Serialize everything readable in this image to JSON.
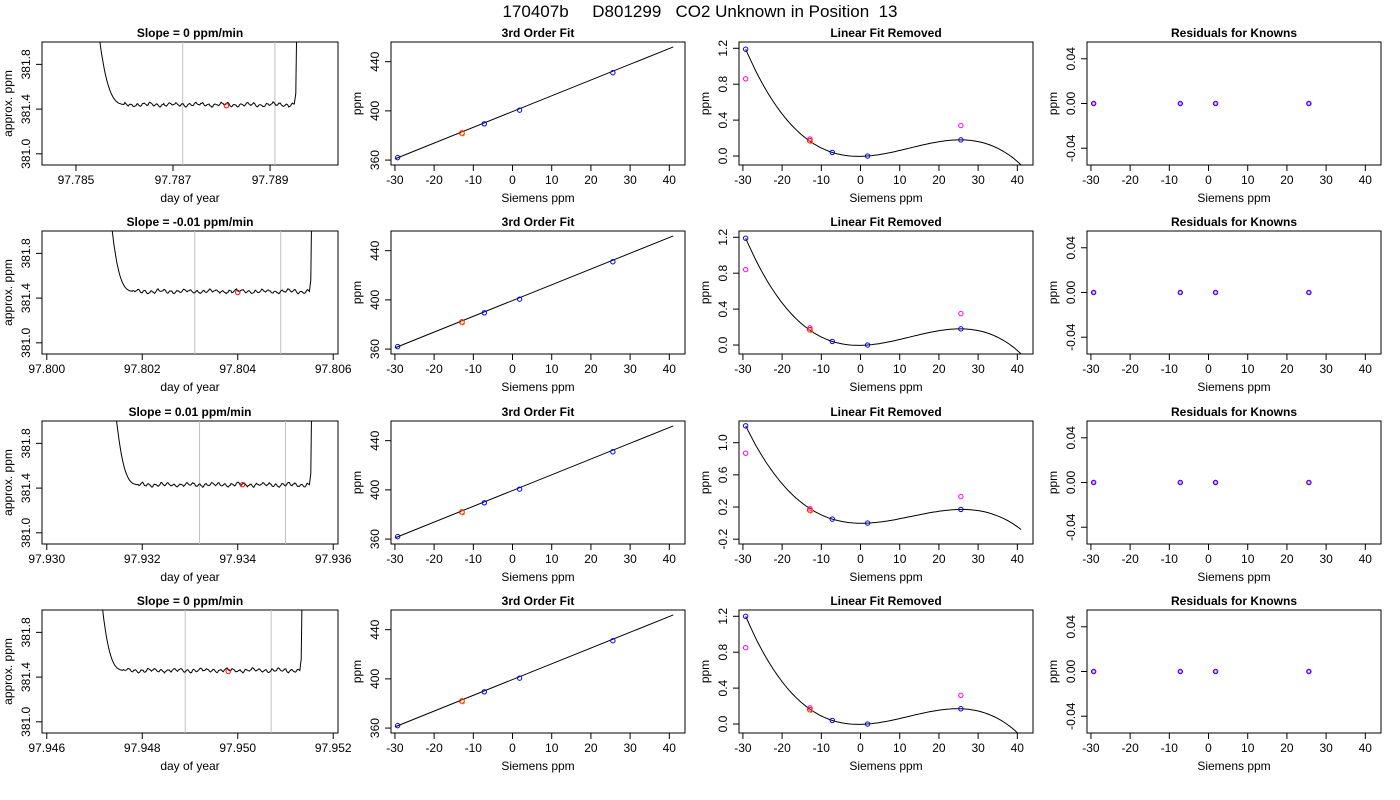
{
  "page_title": "170407b     D801299   CO2 Unknown in Position  13",
  "colors": {
    "trace": "#000000",
    "window_line": "#c0c0c0",
    "unknown_point": "#ff0000",
    "known_point": "#0000ff",
    "original_point": "#ff00ff",
    "fit_line": "#000000"
  },
  "chart_data": [
    {
      "type": "line",
      "row": 0,
      "title": "Slope =  0  ppm/min",
      "xlabel": "day of year",
      "ylabel": "approx. ppm",
      "xlim": [
        97.7843,
        97.7904
      ],
      "ylim": [
        380.9,
        382.0
      ],
      "xticks": [
        97.785,
        97.787,
        97.789
      ],
      "xticklabels": [
        "97.785",
        "97.787",
        "97.789"
      ],
      "yticks": [
        381.0,
        381.4,
        381.8
      ],
      "yticklabels": [
        "381.0",
        "381.4",
        "381.8"
      ],
      "window": [
        97.7872,
        97.7891
      ],
      "marker": {
        "x": 97.7881,
        "y": 381.43
      },
      "trace": {
        "x_start": 97.7853,
        "x_plateau": 97.786,
        "x_end": 97.7895,
        "level": 381.44
      }
    },
    {
      "type": "line",
      "row": 0,
      "title": "3rd Order Fit",
      "xlabel": "Siemens ppm",
      "ylabel": "ppm",
      "xlim": [
        -31,
        44
      ],
      "ylim": [
        356,
        456
      ],
      "xticks": [
        -30,
        -20,
        -10,
        0,
        10,
        20,
        30,
        40
      ],
      "xticklabels": [
        "-30",
        "-20",
        "-10",
        "0",
        "10",
        "20",
        "30",
        "40"
      ],
      "yticks": [
        360,
        400,
        440
      ],
      "yticklabels": [
        "360",
        "400",
        "440"
      ],
      "line": {
        "x": [
          -30,
          41
        ],
        "y": [
          361,
          452
        ]
      },
      "knowns": [
        {
          "x": -29.3,
          "y": 362
        },
        {
          "x": -7.2,
          "y": 389.5
        },
        {
          "x": 1.8,
          "y": 400.6
        },
        {
          "x": 25.6,
          "y": 431
        }
      ],
      "unknown": {
        "x": -12.9,
        "y": 382
      }
    },
    {
      "type": "line",
      "row": 0,
      "title": "Linear Fit Removed",
      "xlabel": "Siemens ppm",
      "ylabel": "ppm",
      "xlim": [
        -31,
        44
      ],
      "ylim": [
        -0.1,
        1.27
      ],
      "xticks": [
        -30,
        -20,
        -10,
        0,
        10,
        20,
        30,
        40
      ],
      "xticklabels": [
        "-30",
        "-20",
        "-10",
        "0",
        "10",
        "20",
        "30",
        "40"
      ],
      "yticks": [
        0,
        0.4,
        0.8,
        1.2
      ],
      "yticklabels": [
        "0.0",
        "0.4",
        "0.8",
        "1.2"
      ],
      "curve": {
        "x_range": [
          -29.3,
          41
        ],
        "points": [
          [
            -29.3,
            1.19
          ],
          [
            -7.2,
            0.04
          ],
          [
            1.8,
            0.0
          ],
          [
            25.6,
            0.18
          ]
        ]
      },
      "knowns": [
        {
          "x": -29.3,
          "y": 1.19
        },
        {
          "x": -7.2,
          "y": 0.04
        },
        {
          "x": 1.8,
          "y": 0.0
        },
        {
          "x": 25.6,
          "y": 0.18
        }
      ],
      "unknown": {
        "x": -12.9,
        "y": 0.17
      },
      "originals": [
        {
          "x": -29.3,
          "y": 0.86
        },
        {
          "x": -12.9,
          "y": 0.19
        },
        {
          "x": 25.6,
          "y": 0.34
        }
      ]
    },
    {
      "type": "scatter",
      "row": 0,
      "title": "Residuals for Knowns",
      "xlabel": "Siemens ppm",
      "ylabel": "ppm",
      "xlim": [
        -31,
        44
      ],
      "ylim": [
        -0.055,
        0.055
      ],
      "xticks": [
        -30,
        -20,
        -10,
        0,
        10,
        20,
        30,
        40
      ],
      "xticklabels": [
        "-30",
        "-20",
        "-10",
        "0",
        "10",
        "20",
        "30",
        "40"
      ],
      "yticks": [
        -0.04,
        0,
        0.04
      ],
      "yticklabels": [
        "-0.04",
        "0.00",
        "0.04"
      ],
      "points": [
        {
          "x": -29.3,
          "y": 0
        },
        {
          "x": -7.2,
          "y": 0
        },
        {
          "x": 1.8,
          "y": 0
        },
        {
          "x": 25.6,
          "y": 0
        }
      ]
    },
    {
      "type": "line",
      "row": 1,
      "title": "Slope =  -0.01  ppm/min",
      "xlabel": "day of year",
      "ylabel": "approx. ppm",
      "xlim": [
        97.7999,
        97.8061
      ],
      "ylim": [
        380.9,
        382.0
      ],
      "xticks": [
        97.8,
        97.802,
        97.804,
        97.806
      ],
      "xticklabels": [
        "97.800",
        "97.802",
        "97.804",
        "97.806"
      ],
      "yticks": [
        381.0,
        381.4,
        381.8
      ],
      "yticklabels": [
        "381.0",
        "381.4",
        "381.8"
      ],
      "window": [
        97.8031,
        97.8049
      ],
      "marker": {
        "x": 97.804,
        "y": 381.45
      },
      "trace": {
        "x_start": 97.8012,
        "x_plateau": 97.8018,
        "x_end": 97.8055,
        "level": 381.46
      }
    },
    {
      "type": "line",
      "row": 1,
      "title": "3rd Order Fit",
      "xlabel": "Siemens ppm",
      "ylabel": "ppm",
      "xlim": [
        -31,
        44
      ],
      "ylim": [
        356,
        456
      ],
      "xticks": [
        -30,
        -20,
        -10,
        0,
        10,
        20,
        30,
        40
      ],
      "xticklabels": [
        "-30",
        "-20",
        "-10",
        "0",
        "10",
        "20",
        "30",
        "40"
      ],
      "yticks": [
        360,
        400,
        440
      ],
      "yticklabels": [
        "360",
        "400",
        "440"
      ],
      "line": {
        "x": [
          -30,
          41
        ],
        "y": [
          361,
          452
        ]
      },
      "knowns": [
        {
          "x": -29.3,
          "y": 362
        },
        {
          "x": -7.2,
          "y": 389.5
        },
        {
          "x": 1.8,
          "y": 400.6
        },
        {
          "x": 25.6,
          "y": 431
        }
      ],
      "unknown": {
        "x": -12.9,
        "y": 382
      }
    },
    {
      "type": "line",
      "row": 1,
      "title": "Linear Fit Removed",
      "xlabel": "Siemens ppm",
      "ylabel": "ppm",
      "xlim": [
        -31,
        44
      ],
      "ylim": [
        -0.1,
        1.27
      ],
      "xticks": [
        -30,
        -20,
        -10,
        0,
        10,
        20,
        30,
        40
      ],
      "xticklabels": [
        "-30",
        "-20",
        "-10",
        "0",
        "10",
        "20",
        "30",
        "40"
      ],
      "yticks": [
        0,
        0.4,
        0.8,
        1.2
      ],
      "yticklabels": [
        "0.0",
        "0.4",
        "0.8",
        "1.2"
      ],
      "curve": {
        "x_range": [
          -29.3,
          41
        ],
        "points": [
          [
            -29.3,
            1.19
          ],
          [
            -7.2,
            0.04
          ],
          [
            1.8,
            0.0
          ],
          [
            25.6,
            0.18
          ]
        ]
      },
      "knowns": [
        {
          "x": -29.3,
          "y": 1.19
        },
        {
          "x": -7.2,
          "y": 0.04
        },
        {
          "x": 1.8,
          "y": 0.0
        },
        {
          "x": 25.6,
          "y": 0.18
        }
      ],
      "unknown": {
        "x": -12.9,
        "y": 0.17
      },
      "originals": [
        {
          "x": -29.3,
          "y": 0.84
        },
        {
          "x": -12.9,
          "y": 0.19
        },
        {
          "x": 25.6,
          "y": 0.35
        }
      ]
    },
    {
      "type": "scatter",
      "row": 1,
      "title": "Residuals for Knowns",
      "xlabel": "Siemens ppm",
      "ylabel": "ppm",
      "xlim": [
        -31,
        44
      ],
      "ylim": [
        -0.055,
        0.055
      ],
      "xticks": [
        -30,
        -20,
        -10,
        0,
        10,
        20,
        30,
        40
      ],
      "xticklabels": [
        "-30",
        "-20",
        "-10",
        "0",
        "10",
        "20",
        "30",
        "40"
      ],
      "yticks": [
        -0.04,
        0,
        0.04
      ],
      "yticklabels": [
        "-0.04",
        "0.00",
        "0.04"
      ],
      "points": [
        {
          "x": -29.3,
          "y": 0
        },
        {
          "x": -7.2,
          "y": 0
        },
        {
          "x": 1.8,
          "y": 0
        },
        {
          "x": 25.6,
          "y": 0
        }
      ]
    },
    {
      "type": "line",
      "row": 2,
      "title": "Slope =  0.01  ppm/min",
      "xlabel": "day of year",
      "ylabel": "approx. ppm",
      "xlim": [
        97.9299,
        97.9361
      ],
      "ylim": [
        380.9,
        382.0
      ],
      "xticks": [
        97.93,
        97.932,
        97.934,
        97.936
      ],
      "xticklabels": [
        "97.930",
        "97.932",
        "97.934",
        "97.936"
      ],
      "yticks": [
        381.0,
        381.4,
        381.8
      ],
      "yticklabels": [
        "381.0",
        "381.4",
        "381.8"
      ],
      "window": [
        97.9332,
        97.935
      ],
      "marker": {
        "x": 97.9341,
        "y": 381.43
      },
      "trace": {
        "x_start": 97.9313,
        "x_plateau": 97.9319,
        "x_end": 97.9355,
        "level": 381.43
      }
    },
    {
      "type": "line",
      "row": 2,
      "title": "3rd Order Fit",
      "xlabel": "Siemens ppm",
      "ylabel": "ppm",
      "xlim": [
        -31,
        44
      ],
      "ylim": [
        356,
        456
      ],
      "xticks": [
        -30,
        -20,
        -10,
        0,
        10,
        20,
        30,
        40
      ],
      "xticklabels": [
        "-30",
        "-20",
        "-10",
        "0",
        "10",
        "20",
        "30",
        "40"
      ],
      "yticks": [
        360,
        400,
        440
      ],
      "yticklabels": [
        "360",
        "400",
        "440"
      ],
      "line": {
        "x": [
          -30,
          41
        ],
        "y": [
          361,
          452
        ]
      },
      "knowns": [
        {
          "x": -29.3,
          "y": 362
        },
        {
          "x": -7.2,
          "y": 389.5
        },
        {
          "x": 1.8,
          "y": 400.6
        },
        {
          "x": 25.6,
          "y": 431
        }
      ],
      "unknown": {
        "x": -12.9,
        "y": 382
      }
    },
    {
      "type": "line",
      "row": 2,
      "title": "Linear Fit Removed",
      "xlabel": "Siemens ppm",
      "ylabel": "ppm",
      "xlim": [
        -31,
        44
      ],
      "ylim": [
        -0.26,
        1.27
      ],
      "xticks": [
        -30,
        -20,
        -10,
        0,
        10,
        20,
        30,
        40
      ],
      "xticklabels": [
        "-30",
        "-20",
        "-10",
        "0",
        "10",
        "20",
        "30",
        "40"
      ],
      "yticks": [
        -0.2,
        0.2,
        0.6,
        1.0
      ],
      "yticklabels": [
        "-0.2",
        "0.2",
        "0.6",
        "1.0"
      ],
      "curve": {
        "x_range": [
          -29.3,
          41
        ],
        "points": [
          [
            -29.3,
            1.21
          ],
          [
            -7.2,
            0.05
          ],
          [
            1.8,
            0.0
          ],
          [
            25.6,
            0.17
          ]
        ]
      },
      "knowns": [
        {
          "x": -29.3,
          "y": 1.21
        },
        {
          "x": -7.2,
          "y": 0.05
        },
        {
          "x": 1.8,
          "y": 0.0
        },
        {
          "x": 25.6,
          "y": 0.17
        }
      ],
      "unknown": {
        "x": -12.9,
        "y": 0.16
      },
      "originals": [
        {
          "x": -29.3,
          "y": 0.87
        },
        {
          "x": -12.9,
          "y": 0.18
        },
        {
          "x": 25.6,
          "y": 0.33
        }
      ]
    },
    {
      "type": "scatter",
      "row": 2,
      "title": "Residuals for Knowns",
      "xlabel": "Siemens ppm",
      "ylabel": "ppm",
      "xlim": [
        -31,
        44
      ],
      "ylim": [
        -0.055,
        0.055
      ],
      "xticks": [
        -30,
        -20,
        -10,
        0,
        10,
        20,
        30,
        40
      ],
      "xticklabels": [
        "-30",
        "-20",
        "-10",
        "0",
        "10",
        "20",
        "30",
        "40"
      ],
      "yticks": [
        -0.04,
        0,
        0.04
      ],
      "yticklabels": [
        "-0.04",
        "0.00",
        "0.04"
      ],
      "points": [
        {
          "x": -29.3,
          "y": 0
        },
        {
          "x": -7.2,
          "y": 0
        },
        {
          "x": 1.8,
          "y": 0
        },
        {
          "x": 25.6,
          "y": 0
        }
      ]
    },
    {
      "type": "line",
      "row": 3,
      "title": "Slope =  0  ppm/min",
      "xlabel": "day of year",
      "ylabel": "approx. ppm",
      "xlim": [
        97.9459,
        97.9521
      ],
      "ylim": [
        380.9,
        382.0
      ],
      "xticks": [
        97.946,
        97.948,
        97.95,
        97.952
      ],
      "xticklabels": [
        "97.946",
        "97.948",
        "97.950",
        "97.952"
      ],
      "yticks": [
        381.0,
        381.4,
        381.8
      ],
      "yticklabels": [
        "381.0",
        "381.4",
        "381.8"
      ],
      "window": [
        97.9489,
        97.9507
      ],
      "marker": {
        "x": 97.9498,
        "y": 381.45
      },
      "trace": {
        "x_start": 97.947,
        "x_plateau": 97.9476,
        "x_end": 97.9513,
        "level": 381.46
      }
    },
    {
      "type": "line",
      "row": 3,
      "title": "3rd Order Fit",
      "xlabel": "Siemens ppm",
      "ylabel": "ppm",
      "xlim": [
        -31,
        44
      ],
      "ylim": [
        356,
        456
      ],
      "xticks": [
        -30,
        -20,
        -10,
        0,
        10,
        20,
        30,
        40
      ],
      "xticklabels": [
        "-30",
        "-20",
        "-10",
        "0",
        "10",
        "20",
        "30",
        "40"
      ],
      "yticks": [
        360,
        400,
        440
      ],
      "yticklabels": [
        "360",
        "400",
        "440"
      ],
      "line": {
        "x": [
          -30,
          41
        ],
        "y": [
          361,
          452
        ]
      },
      "knowns": [
        {
          "x": -29.3,
          "y": 362
        },
        {
          "x": -7.2,
          "y": 389.5
        },
        {
          "x": 1.8,
          "y": 400.6
        },
        {
          "x": 25.6,
          "y": 431
        }
      ],
      "unknown": {
        "x": -12.9,
        "y": 382
      }
    },
    {
      "type": "line",
      "row": 3,
      "title": "Linear Fit Removed",
      "xlabel": "Siemens ppm",
      "ylabel": "ppm",
      "xlim": [
        -31,
        44
      ],
      "ylim": [
        -0.1,
        1.27
      ],
      "xticks": [
        -30,
        -20,
        -10,
        0,
        10,
        20,
        30,
        40
      ],
      "xticklabels": [
        "-30",
        "-20",
        "-10",
        "0",
        "10",
        "20",
        "30",
        "40"
      ],
      "yticks": [
        0,
        0.4,
        0.8,
        1.2
      ],
      "yticklabels": [
        "0.0",
        "0.4",
        "0.8",
        "1.2"
      ],
      "curve": {
        "x_range": [
          -29.3,
          41
        ],
        "points": [
          [
            -29.3,
            1.2
          ],
          [
            -7.2,
            0.04
          ],
          [
            1.8,
            0.0
          ],
          [
            25.6,
            0.17
          ]
        ]
      },
      "knowns": [
        {
          "x": -29.3,
          "y": 1.2
        },
        {
          "x": -7.2,
          "y": 0.04
        },
        {
          "x": 1.8,
          "y": 0.0
        },
        {
          "x": 25.6,
          "y": 0.17
        }
      ],
      "unknown": {
        "x": -12.9,
        "y": 0.16
      },
      "originals": [
        {
          "x": -29.3,
          "y": 0.85
        },
        {
          "x": -12.9,
          "y": 0.18
        },
        {
          "x": 25.6,
          "y": 0.32
        }
      ]
    },
    {
      "type": "scatter",
      "row": 3,
      "title": "Residuals for Knowns",
      "xlabel": "Siemens ppm",
      "ylabel": "ppm",
      "xlim": [
        -31,
        44
      ],
      "ylim": [
        -0.055,
        0.055
      ],
      "xticks": [
        -30,
        -20,
        -10,
        0,
        10,
        20,
        30,
        40
      ],
      "xticklabels": [
        "-30",
        "-20",
        "-10",
        "0",
        "10",
        "20",
        "30",
        "40"
      ],
      "yticks": [
        -0.04,
        0,
        0.04
      ],
      "yticklabels": [
        "-0.04",
        "0.00",
        "0.04"
      ],
      "points": [
        {
          "x": -29.3,
          "y": 0
        },
        {
          "x": -7.2,
          "y": 0
        },
        {
          "x": 1.8,
          "y": 0
        },
        {
          "x": 25.6,
          "y": 0
        }
      ]
    }
  ]
}
